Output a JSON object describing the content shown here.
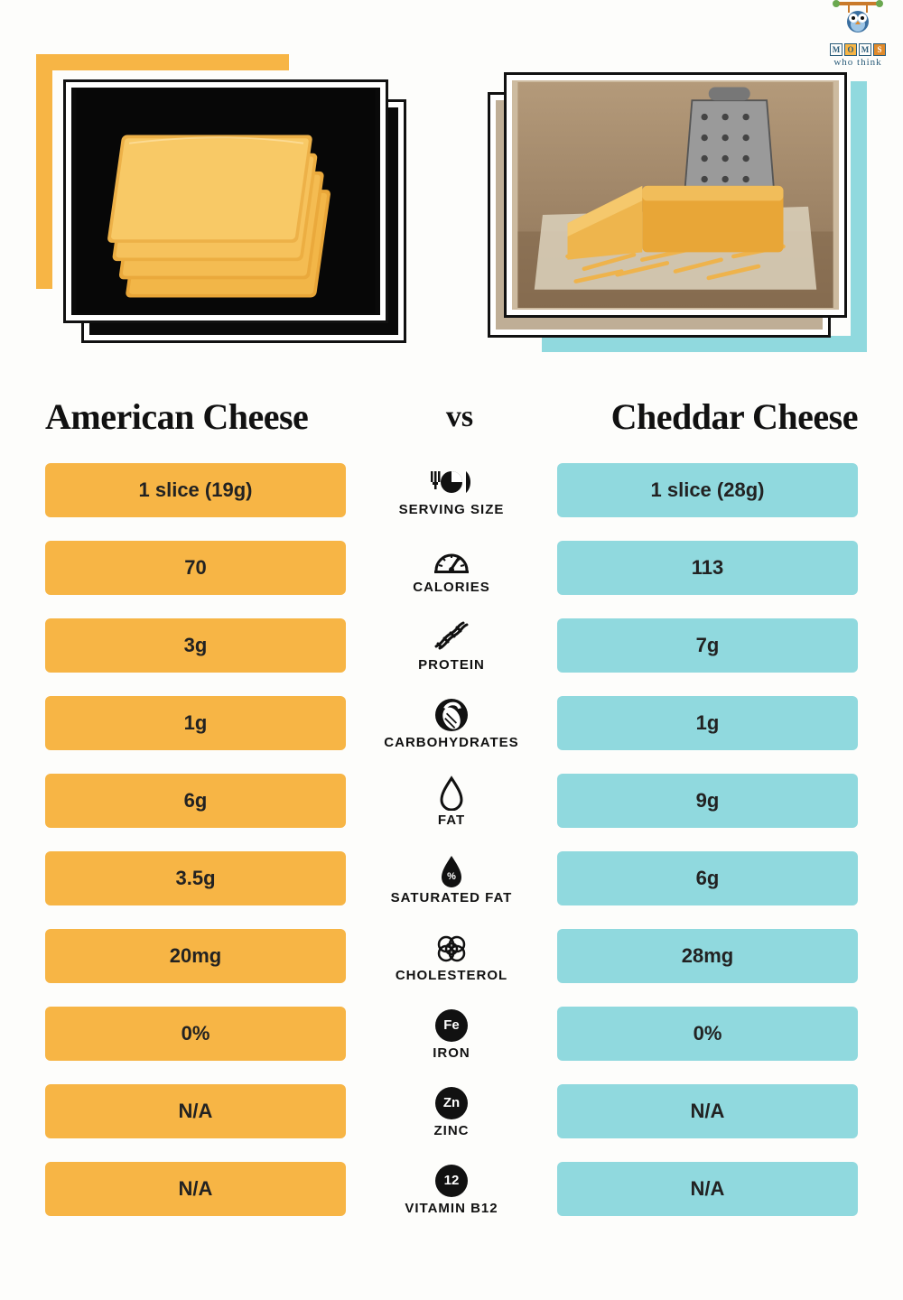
{
  "logo": {
    "line1": "MOMS",
    "sub": "who think"
  },
  "title_left": "American Cheese",
  "vs": "vs",
  "title_right": "Cheddar Cheese",
  "colors": {
    "orange": "#f7b545",
    "teal": "#90d9de",
    "text": "#111111",
    "pill_text": "#222222",
    "bg": "#fdfdfb"
  },
  "typography": {
    "title_fontsize": 40,
    "vs_fontsize": 34,
    "pill_fontsize": 22,
    "label_fontsize": 15
  },
  "layout": {
    "pill_height": 60,
    "row_gap": 26,
    "mid_col_width": 210
  },
  "rows": [
    {
      "label": "SERVING SIZE",
      "icon": "serving",
      "left": "1 slice (19g)",
      "right": "1 slice (28g)"
    },
    {
      "label": "CALORIES",
      "icon": "calories",
      "left": "70",
      "right": "113"
    },
    {
      "label": "PROTEIN",
      "icon": "protein",
      "left": "3g",
      "right": "7g"
    },
    {
      "label": "CARBOHYDRATES",
      "icon": "carbs",
      "left": "1g",
      "right": "1g"
    },
    {
      "label": "FAT",
      "icon": "fat",
      "left": "6g",
      "right": "9g"
    },
    {
      "label": "SATURATED FAT",
      "icon": "satfat",
      "left": "3.5g",
      "right": "6g"
    },
    {
      "label": "CHOLESTEROL",
      "icon": "cholesterol",
      "left": "20mg",
      "right": "28mg"
    },
    {
      "label": "IRON",
      "icon": "iron",
      "left": "0%",
      "right": "0%"
    },
    {
      "label": "ZINC",
      "icon": "zinc",
      "left": "N/A",
      "right": "N/A"
    },
    {
      "label": "VITAMIN B12",
      "icon": "b12",
      "left": "N/A",
      "right": "N/A"
    }
  ]
}
